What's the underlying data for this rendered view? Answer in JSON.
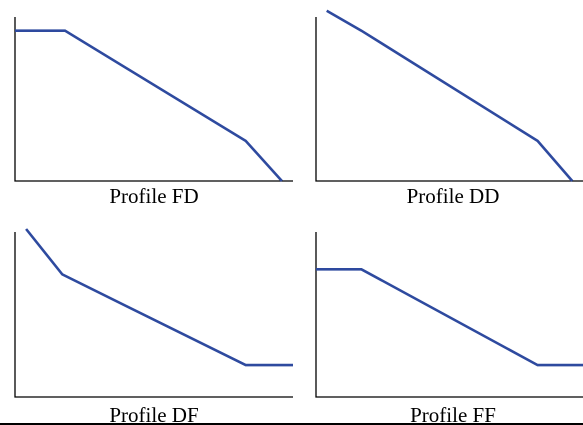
{
  "line_color": "#2E4A9F",
  "chart_data": [
    {
      "type": "line",
      "title": "Profile FD",
      "xlabel": "",
      "ylabel": "",
      "grid": false,
      "xlim": [
        0,
        1
      ],
      "ylim": [
        0,
        1
      ],
      "x": [
        0.0,
        0.18,
        0.83,
        0.96
      ],
      "series": [
        {
          "values": [
            0.9,
            0.9,
            0.24,
            0.0
          ]
        }
      ]
    },
    {
      "type": "line",
      "title": "Profile DD",
      "xlabel": "",
      "ylabel": "",
      "grid": false,
      "xlim": [
        0,
        1
      ],
      "ylim": [
        0,
        1
      ],
      "x": [
        0.04,
        0.17,
        0.83,
        0.96
      ],
      "series": [
        {
          "values": [
            1.02,
            0.9,
            0.24,
            0.0
          ]
        }
      ]
    },
    {
      "type": "line",
      "title": "Profile DF",
      "xlabel": "",
      "ylabel": "",
      "grid": false,
      "xlim": [
        0,
        1
      ],
      "ylim": [
        0,
        1
      ],
      "x": [
        0.04,
        0.17,
        0.83,
        1.0
      ],
      "series": [
        {
          "values": [
            1.0,
            0.73,
            0.19,
            0.19
          ]
        }
      ]
    },
    {
      "type": "line",
      "title": "Profile FF",
      "xlabel": "",
      "ylabel": "",
      "grid": false,
      "xlim": [
        0,
        1
      ],
      "ylim": [
        0,
        1
      ],
      "x": [
        0.0,
        0.17,
        0.83,
        1.0
      ],
      "series": [
        {
          "values": [
            0.76,
            0.76,
            0.19,
            0.19
          ]
        }
      ]
    }
  ]
}
